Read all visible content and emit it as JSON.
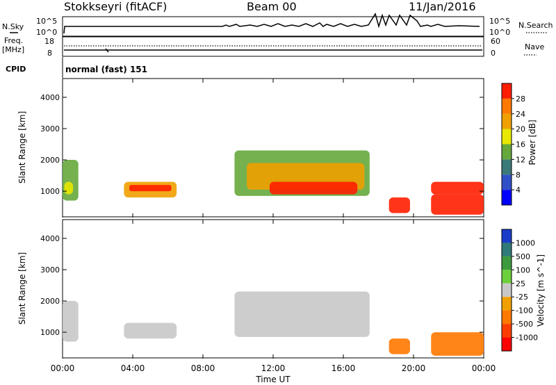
{
  "header": {
    "station": "Stokkseyri (fitACF)",
    "beam": "Beam 00",
    "date": "11/Jan/2016"
  },
  "top_panels": {
    "nsky_label": "N.Sky",
    "nsky_ticks": [
      "10^5",
      "10^0"
    ],
    "nsearch_label": "N.Search",
    "nsearch_ticks": [
      "10^5",
      "10^0"
    ],
    "freq_label_1": "Freq.",
    "freq_label_2": "[MHz]",
    "freq_ticks": [
      "18",
      "8"
    ],
    "nave_label": "Nave",
    "nave_ticks": [
      "60",
      "0"
    ],
    "cpid_label": "CPID",
    "cpid_value": "normal (fast) 151"
  },
  "chart_data": [
    {
      "type": "heatmap",
      "title": "",
      "xlabel": "Time UT",
      "ylabel": "Slant Range [km]",
      "xlim": [
        0,
        24
      ],
      "ylim": [
        180,
        4600
      ],
      "x_ticks": [
        "00:00",
        "04:00",
        "08:00",
        "12:00",
        "16:00",
        "20:00",
        "00:00"
      ],
      "y_ticks": [
        "1000",
        "2000",
        "3000",
        "4000"
      ],
      "colorbar_label": "Power [dB]",
      "colorbar_ticks": [
        "4",
        "8",
        "12",
        "16",
        "20",
        "24",
        "28"
      ],
      "colorbar_colors": [
        "#0000ff",
        "#3050c8",
        "#3a7a78",
        "#66a83c",
        "#e8e800",
        "#f0a000",
        "#ff7800",
        "#ff1e00"
      ],
      "features": [
        {
          "t_start": 0.0,
          "t_end": 0.9,
          "range_start": 700,
          "range_end": 2000,
          "level": 3
        },
        {
          "t_start": 0.1,
          "t_end": 0.6,
          "range_start": 900,
          "range_end": 1300,
          "level": 4
        },
        {
          "t_start": 3.5,
          "t_end": 6.5,
          "range_start": 800,
          "range_end": 1300,
          "level": 5
        },
        {
          "t_start": 3.8,
          "t_end": 6.2,
          "range_start": 1000,
          "range_end": 1200,
          "level": 7
        },
        {
          "t_start": 9.8,
          "t_end": 17.5,
          "range_start": 850,
          "range_end": 2300,
          "level": 3
        },
        {
          "t_start": 10.5,
          "t_end": 17.2,
          "range_start": 1050,
          "range_end": 1900,
          "level": 5
        },
        {
          "t_start": 11.8,
          "t_end": 16.8,
          "range_start": 900,
          "range_end": 1300,
          "level": 8
        },
        {
          "t_start": 18.6,
          "t_end": 19.8,
          "range_start": 300,
          "range_end": 800,
          "level": 8
        },
        {
          "t_start": 21.0,
          "t_end": 24.0,
          "range_start": 250,
          "range_end": 900,
          "level": 8
        },
        {
          "t_start": 21.0,
          "t_end": 24.0,
          "range_start": 900,
          "range_end": 1300,
          "level": 7
        }
      ]
    },
    {
      "type": "heatmap",
      "title": "",
      "xlabel": "Time UT",
      "ylabel": "Slant Range [km]",
      "xlim": [
        0,
        24
      ],
      "ylim": [
        180,
        4600
      ],
      "x_ticks": [
        "00:00",
        "04:00",
        "08:00",
        "12:00",
        "16:00",
        "20:00",
        "00:00"
      ],
      "y_ticks": [
        "1000",
        "2000",
        "3000",
        "4000"
      ],
      "colorbar_label": "Velocity [m s^-1]",
      "colorbar_ticks": [
        "1000",
        "500",
        "100",
        "25",
        "-25",
        "-100",
        "-500",
        "-1000"
      ],
      "colorbar_colors": [
        "#1a3cc8",
        "#2e7a78",
        "#3c9a3c",
        "#6cd03c",
        "#c8c8c8",
        "#f0a000",
        "#ff7800",
        "#ff3c00",
        "#ff0000"
      ],
      "features": [
        {
          "t_start": 0.0,
          "t_end": 0.9,
          "range_start": 700,
          "range_end": 2000,
          "level": 4
        },
        {
          "t_start": 3.5,
          "t_end": 6.5,
          "range_start": 800,
          "range_end": 1300,
          "level": 4
        },
        {
          "t_start": 9.8,
          "t_end": 17.5,
          "range_start": 850,
          "range_end": 2300,
          "level": 4
        },
        {
          "t_start": 18.6,
          "t_end": 19.8,
          "range_start": 300,
          "range_end": 800,
          "level": 6
        },
        {
          "t_start": 21.0,
          "t_end": 24.0,
          "range_start": 250,
          "range_end": 1000,
          "level": 6
        }
      ]
    }
  ]
}
